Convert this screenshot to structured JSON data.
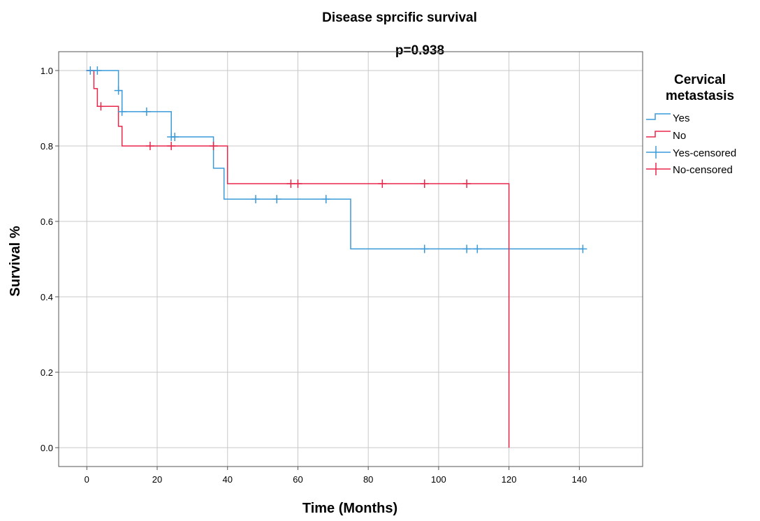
{
  "chart_data": {
    "type": "line",
    "step": true,
    "title": "Disease sprcific survival",
    "subtitle": "p=0.938",
    "xlabel": "Time (Months)",
    "ylabel": "Survival %",
    "xlim": [
      -8,
      158
    ],
    "ylim": [
      -0.05,
      1.05
    ],
    "x_ticks": [
      0,
      20,
      40,
      60,
      80,
      100,
      120,
      140
    ],
    "y_ticks": [
      0.0,
      0.2,
      0.4,
      0.6,
      0.8,
      1.0
    ],
    "y_tick_labels": [
      "0.0",
      "0.2",
      "0.4",
      "0.6",
      "0.8",
      "1.0"
    ],
    "grid": true,
    "legend": {
      "title_lines": [
        "Cervical",
        "metastasis"
      ],
      "placement": "right",
      "entries": [
        "Yes",
        "No",
        "Yes-censored",
        "No-censored"
      ]
    },
    "series": [
      {
        "name": "Yes",
        "color": "#3a9ad9",
        "steps": [
          [
            0,
            1.0
          ],
          [
            9,
            0.947
          ],
          [
            10,
            0.891
          ],
          [
            24,
            0.824
          ],
          [
            36,
            0.741
          ],
          [
            39,
            0.659
          ],
          [
            75,
            0.527
          ],
          [
            141,
            0.527
          ]
        ],
        "censored": [
          [
            1,
            1.0
          ],
          [
            3,
            1.0
          ],
          [
            9,
            0.947
          ],
          [
            10,
            0.891
          ],
          [
            17,
            0.891
          ],
          [
            24,
            0.824
          ],
          [
            25,
            0.824
          ],
          [
            48,
            0.659
          ],
          [
            54,
            0.659
          ],
          [
            68,
            0.659
          ],
          [
            96,
            0.527
          ],
          [
            108,
            0.527
          ],
          [
            111,
            0.527
          ],
          [
            141,
            0.527
          ]
        ]
      },
      {
        "name": "No",
        "color": "#e8264a",
        "steps": [
          [
            0,
            1.0
          ],
          [
            2,
            0.952
          ],
          [
            3,
            0.905
          ],
          [
            9,
            0.852
          ],
          [
            10,
            0.8
          ],
          [
            40,
            0.7
          ],
          [
            120,
            0.0
          ]
        ],
        "censored": [
          [
            4,
            0.905
          ],
          [
            18,
            0.8
          ],
          [
            24,
            0.8
          ],
          [
            36,
            0.8
          ],
          [
            58,
            0.7
          ],
          [
            60,
            0.7
          ],
          [
            84,
            0.7
          ],
          [
            96,
            0.7
          ],
          [
            108,
            0.7
          ]
        ]
      }
    ]
  }
}
